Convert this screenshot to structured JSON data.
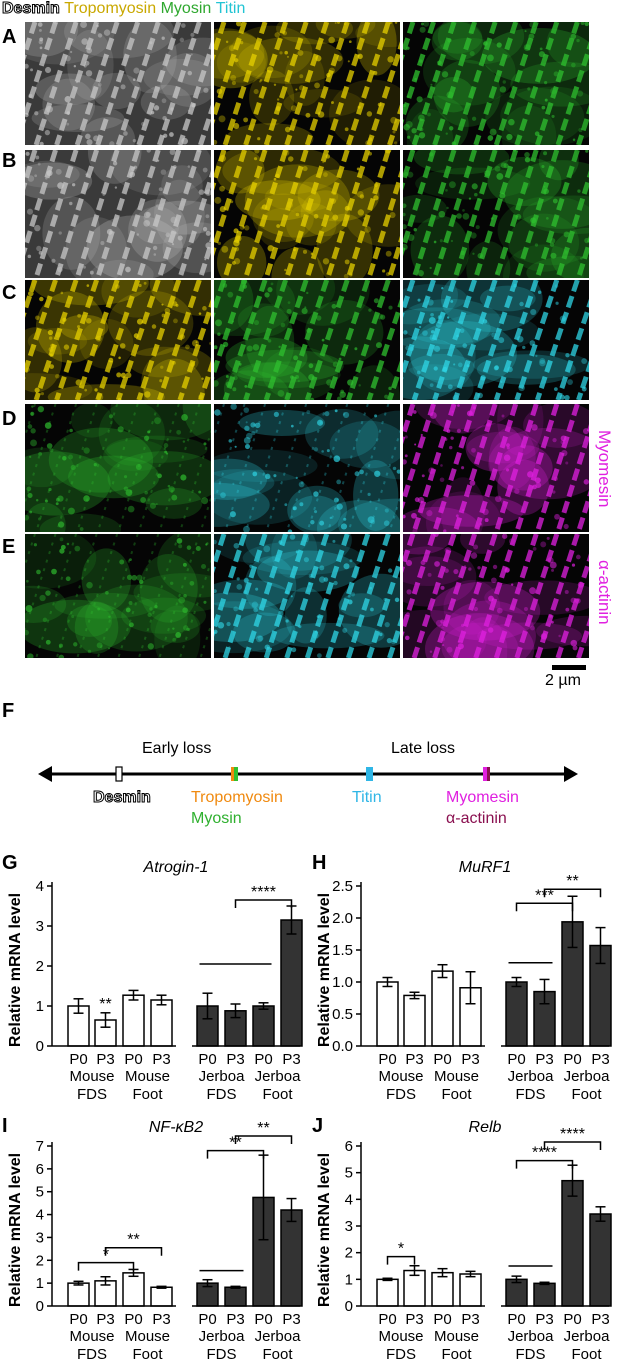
{
  "header": {
    "desmin": "Desmin",
    "tropomyosin": "Tropomyosin",
    "myosin": "Myosin",
    "titin": "Titin"
  },
  "colors": {
    "desmin": "#c8c8c8",
    "tropomyosin": "#e6d000",
    "myosin": "#2fc02f",
    "titin": "#2fd6e6",
    "myomesin": "#e020e0",
    "actinin": "#9a1060",
    "bar_filled": "#333333",
    "bar_open": "#ffffff"
  },
  "panels": {
    "A": "A",
    "B": "B",
    "C": "C",
    "D": "D",
    "E": "E",
    "F": "F",
    "G": "G",
    "H": "H",
    "I": "I",
    "J": "J"
  },
  "side_labels": {
    "D": "Myomesin",
    "E": "α-actinin"
  },
  "scale_bar": "2 µm",
  "timeline": {
    "early": "Early loss",
    "late": "Late loss",
    "desmin": "Desmin",
    "tropomyosin": "Tropomyosin",
    "myosin": "Myosin",
    "titin": "Titin",
    "myomesin": "Myomesin",
    "actinin": "α-actinin"
  },
  "chart_data": [
    {
      "type": "bar",
      "panel": "G",
      "title": "Atrogin-1",
      "ylabel": "Relative mRNA level",
      "ylim": [
        0,
        4
      ],
      "yticks": [
        "0",
        "1",
        "2",
        "3",
        "4"
      ],
      "categories": [
        "P0",
        "P3",
        "P0",
        "P3",
        "P0",
        "P3",
        "P0",
        "P3"
      ],
      "groups": [
        "Mouse FDS",
        "Mouse Foot",
        "Jerboa FDS",
        "Jerboa Foot"
      ],
      "group_line1": [
        "Mouse",
        "Mouse",
        "Jerboa",
        "Jerboa"
      ],
      "group_line2": [
        "FDS",
        "Foot",
        "FDS",
        "Foot"
      ],
      "values": [
        1.0,
        0.65,
        1.27,
        1.15,
        1.0,
        0.88,
        1.0,
        3.15
      ],
      "errors": [
        0.18,
        0.18,
        0.12,
        0.12,
        0.32,
        0.17,
        0.08,
        0.35
      ],
      "filled": [
        false,
        false,
        false,
        false,
        true,
        true,
        true,
        true
      ],
      "annotations": [
        {
          "type": "star",
          "bar": 1,
          "text": "**"
        },
        {
          "type": "bracket",
          "from": 5,
          "to": 7,
          "y": 3.65,
          "text": "****"
        },
        {
          "type": "line",
          "from": 4,
          "to": 6,
          "y": 2.05
        }
      ]
    },
    {
      "type": "bar",
      "panel": "H",
      "title": "MuRF1",
      "ylabel": "Relative mRNA level",
      "ylim": [
        0,
        2.5
      ],
      "yticks": [
        "0.0",
        "0.5",
        "1.0",
        "1.5",
        "2.0",
        "2.5"
      ],
      "categories": [
        "P0",
        "P3",
        "P0",
        "P3",
        "P0",
        "P3",
        "P0",
        "P3"
      ],
      "groups": [
        "Mouse FDS",
        "Mouse Foot",
        "Jerboa FDS",
        "Jerboa Foot"
      ],
      "group_line1": [
        "Mouse",
        "Mouse",
        "Jerboa",
        "Jerboa"
      ],
      "group_line2": [
        "FDS",
        "Foot",
        "FDS",
        "Foot"
      ],
      "values": [
        1.0,
        0.79,
        1.17,
        0.91,
        1.0,
        0.85,
        1.94,
        1.57
      ],
      "errors": [
        0.07,
        0.05,
        0.1,
        0.25,
        0.07,
        0.19,
        0.4,
        0.28
      ],
      "filled": [
        false,
        false,
        false,
        false,
        true,
        true,
        true,
        true
      ],
      "annotations": [
        {
          "type": "bracket",
          "from": 4,
          "to": 6,
          "y": 2.23,
          "text": "***"
        },
        {
          "type": "bracket",
          "from": 5,
          "to": 7,
          "y": 2.45,
          "text": "**"
        },
        {
          "type": "line",
          "from": 4,
          "to": 5,
          "y": 1.3
        }
      ]
    },
    {
      "type": "bar",
      "panel": "I",
      "title": "NF-κB2",
      "ylabel": "Relative mRNA level",
      "ylim": [
        0,
        7
      ],
      "yticks": [
        "0",
        "1",
        "2",
        "3",
        "4",
        "5",
        "6",
        "7"
      ],
      "categories": [
        "P0",
        "P3",
        "P0",
        "P3",
        "P0",
        "P3",
        "P0",
        "P3"
      ],
      "groups": [
        "Mouse FDS",
        "Mouse Foot",
        "Jerboa FDS",
        "Jerboa Foot"
      ],
      "group_line1": [
        "Mouse",
        "Mouse",
        "Jerboa",
        "Jerboa"
      ],
      "group_line2": [
        "FDS",
        "Foot",
        "FDS",
        "Foot"
      ],
      "values": [
        1.0,
        1.1,
        1.45,
        0.82,
        1.0,
        0.82,
        4.75,
        4.2
      ],
      "errors": [
        0.08,
        0.18,
        0.15,
        0.04,
        0.15,
        0.04,
        1.85,
        0.5
      ],
      "filled": [
        false,
        false,
        false,
        false,
        true,
        true,
        true,
        true
      ],
      "annotations": [
        {
          "type": "bracket",
          "from": 0,
          "to": 2,
          "y": 1.9,
          "text": "*"
        },
        {
          "type": "bracket",
          "from": 1,
          "to": 3,
          "y": 2.55,
          "text": "**"
        },
        {
          "type": "bracket",
          "from": 4,
          "to": 6,
          "y": 6.8,
          "text": "**"
        },
        {
          "type": "bracket",
          "from": 5,
          "to": 7,
          "y": 7.6,
          "text": "**"
        },
        {
          "type": "line",
          "from": 4,
          "to": 5,
          "y": 1.55
        }
      ]
    },
    {
      "type": "bar",
      "panel": "J",
      "title": "Relb",
      "ylabel": "Relative mRNA level",
      "ylim": [
        0,
        6
      ],
      "yticks": [
        "0",
        "1",
        "2",
        "3",
        "4",
        "5",
        "6"
      ],
      "categories": [
        "P0",
        "P3",
        "P0",
        "P3",
        "P0",
        "P3",
        "P0",
        "P3"
      ],
      "groups": [
        "Mouse FDS",
        "Mouse Foot",
        "Jerboa FDS",
        "Jerboa Foot"
      ],
      "group_line1": [
        "Mouse",
        "Mouse",
        "Jerboa",
        "Jerboa"
      ],
      "group_line2": [
        "FDS",
        "Foot",
        "FDS",
        "Foot"
      ],
      "values": [
        1.0,
        1.33,
        1.25,
        1.2,
        1.0,
        0.85,
        4.7,
        3.45
      ],
      "errors": [
        0.04,
        0.18,
        0.15,
        0.1,
        0.12,
        0.04,
        0.58,
        0.27
      ],
      "filled": [
        false,
        false,
        false,
        false,
        true,
        true,
        true,
        true
      ],
      "annotations": [
        {
          "type": "bracket",
          "from": 0,
          "to": 1,
          "y": 1.85,
          "text": "*"
        },
        {
          "type": "bracket",
          "from": 4,
          "to": 6,
          "y": 5.45,
          "text": "****"
        },
        {
          "type": "bracket",
          "from": 5,
          "to": 7,
          "y": 6.15,
          "text": "****"
        },
        {
          "type": "line",
          "from": 4,
          "to": 5,
          "y": 1.5
        }
      ]
    }
  ]
}
